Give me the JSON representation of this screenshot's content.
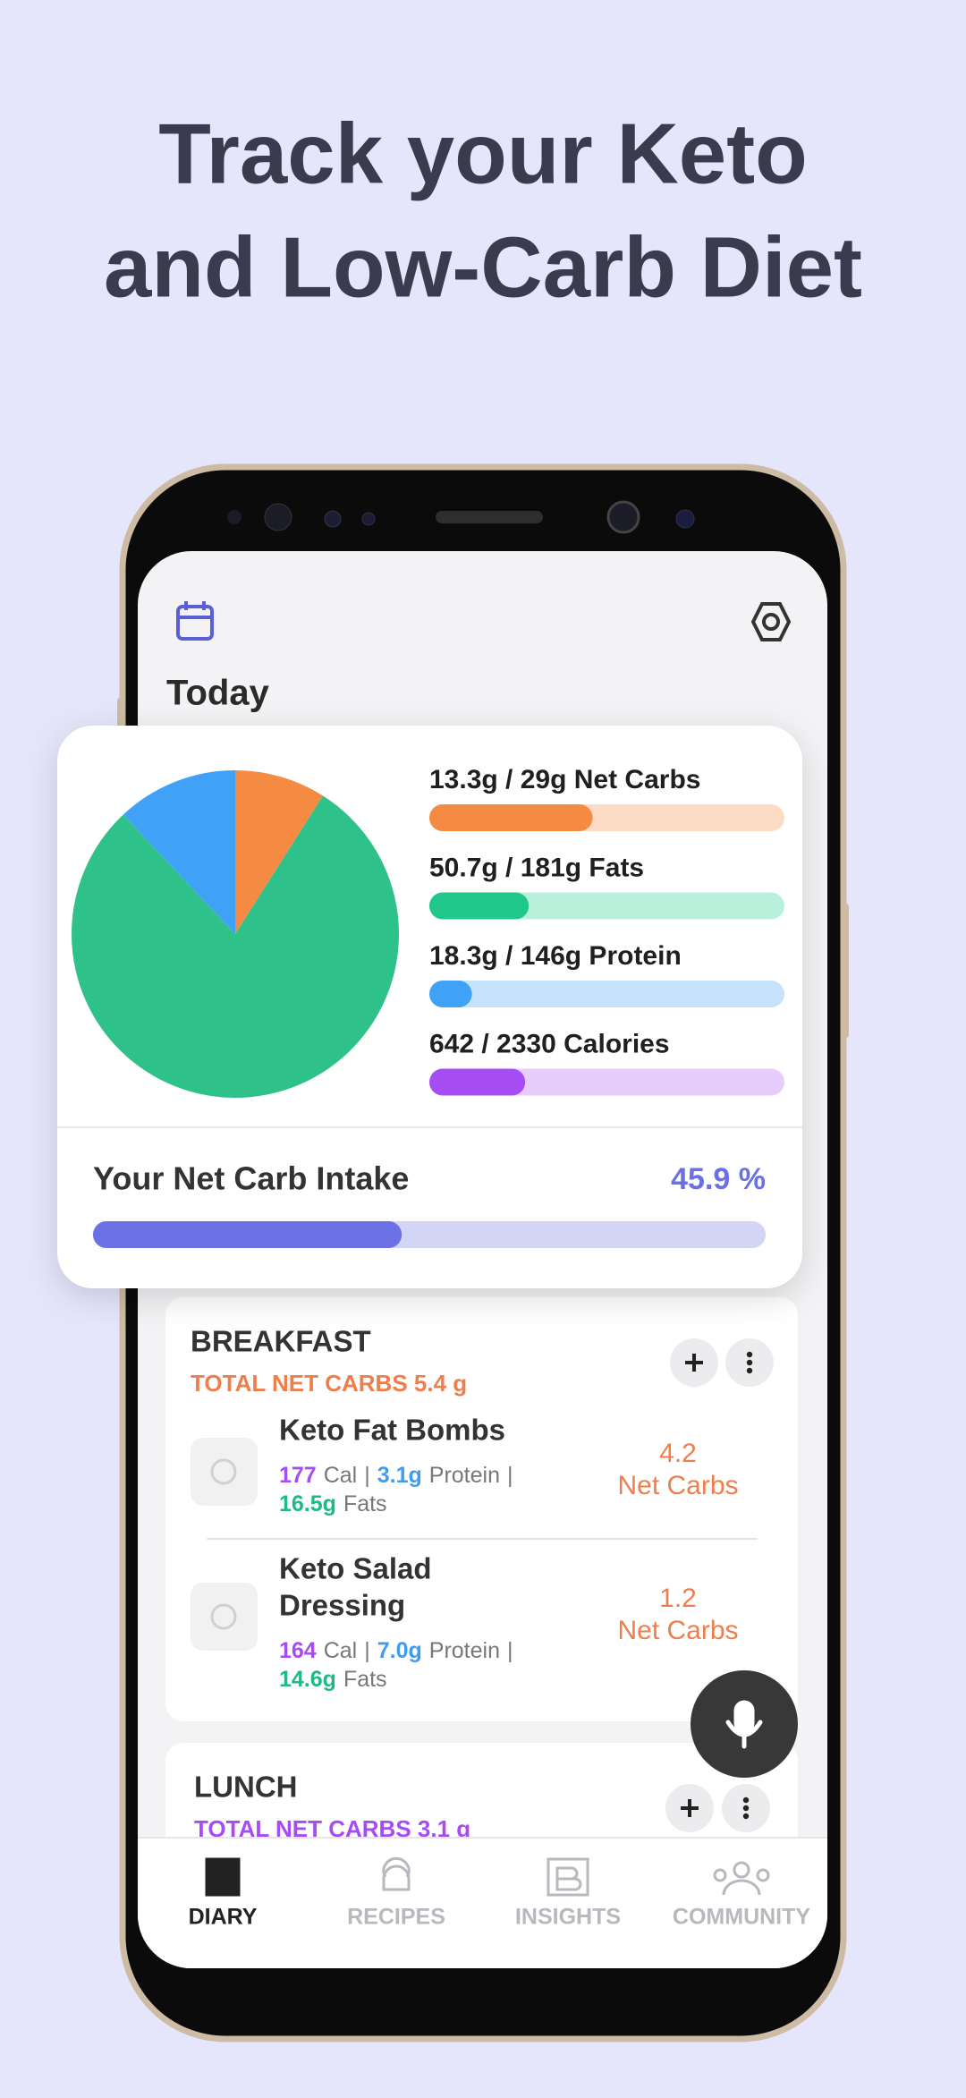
{
  "header": {
    "title_lines": [
      "Track your Keto",
      "and Low-Carb Diet"
    ]
  },
  "app": {
    "date_label": "Today",
    "summary": {
      "pie": {
        "values": [
          9,
          79,
          12
        ],
        "colors": [
          "#f58a42",
          "#2ec28a",
          "#3fa2f7"
        ]
      },
      "macros": [
        {
          "label": "13.3g / 29g Net Carbs",
          "fill_percent": 46,
          "color": "#f58a42",
          "track": "#fddcc6"
        },
        {
          "label": "50.7g / 181g Fats",
          "fill_percent": 28,
          "color": "#1fc78a",
          "track": "#b8f0dc"
        },
        {
          "label": "18.3g / 146g Protein",
          "fill_percent": 12,
          "color": "#3fa2f7",
          "track": "#c6e2fb"
        },
        {
          "label": "642 / 2330 Calories",
          "fill_percent": 27,
          "color": "#a64cf5",
          "track": "#e7cdfb"
        }
      ],
      "intake": {
        "label": "Your Net Carb Intake",
        "value": 45.9,
        "value_label": "45.9 %"
      }
    },
    "labels": {
      "cal": "Cal",
      "protein": "Protein",
      "fats": "Fats",
      "sep": "|",
      "net_carbs": "Net Carbs"
    },
    "meals": [
      {
        "name": "BREAKFAST",
        "total": "TOTAL NET CARBS 5.4 g",
        "total_color": "#ee7f4c",
        "items": [
          {
            "name_lines": [
              "Keto Fat Bombs"
            ],
            "calories": "177",
            "protein": "3.1g",
            "fats": "16.5g",
            "net_carbs": "4.2"
          },
          {
            "name_lines": [
              "Keto Salad",
              "Dressing"
            ],
            "calories": "164",
            "protein": "7.0g",
            "fats": "14.6g",
            "net_carbs": "1.2"
          }
        ]
      },
      {
        "name": "LUNCH",
        "total": "TOTAL NET CARBS 3.1 g",
        "total_color": "#a64cf5",
        "items": []
      }
    ],
    "nav": [
      "DIARY",
      "RECIPES",
      "INSIGHTS",
      "COMMUNITY"
    ]
  }
}
